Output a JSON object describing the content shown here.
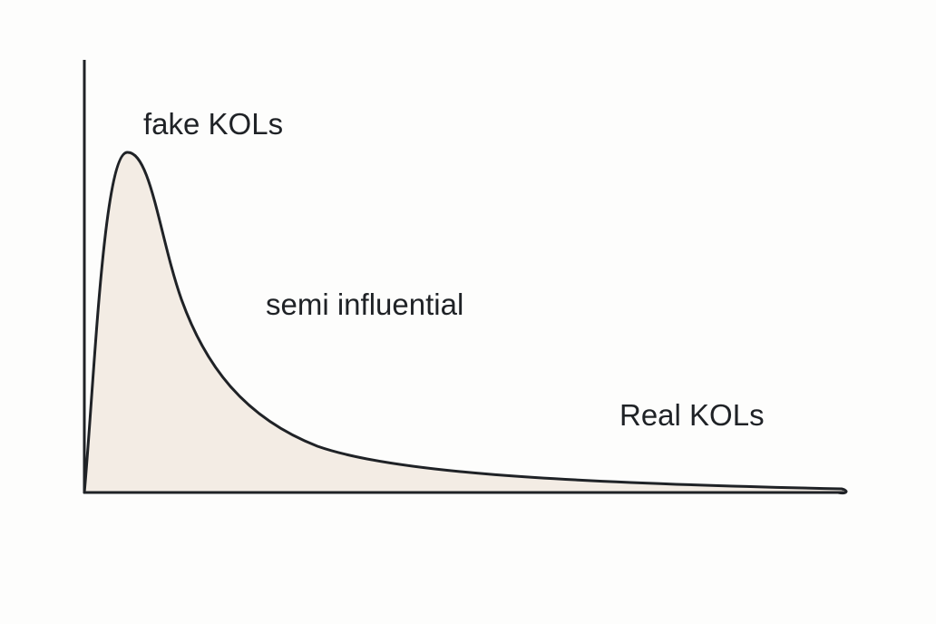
{
  "annotations": [
    "fake KOLs",
    "semi influential",
    "Real KOLs"
  ]
}
